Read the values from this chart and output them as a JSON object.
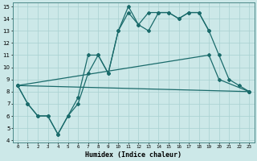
{
  "title": "",
  "xlabel": "Humidex (Indice chaleur)",
  "bg_color": "#cce8e8",
  "line_color": "#1a6b6b",
  "xlim": [
    -0.5,
    23.5
  ],
  "ylim": [
    3.8,
    15.3
  ],
  "yticks": [
    4,
    5,
    6,
    7,
    8,
    9,
    10,
    11,
    12,
    13,
    14,
    15
  ],
  "xticks": [
    0,
    1,
    2,
    3,
    4,
    5,
    6,
    7,
    8,
    9,
    10,
    11,
    12,
    13,
    14,
    15,
    16,
    17,
    18,
    19,
    20,
    21,
    22,
    23
  ],
  "line1": [
    8.5,
    7.0,
    6.0,
    6.0,
    4.5,
    6.0,
    7.5,
    11.0,
    11.0,
    9.5,
    13.0,
    15.0,
    13.5,
    14.5,
    14.5,
    14.5,
    14.0,
    14.5,
    14.5,
    13.0,
    null,
    null,
    null,
    null
  ],
  "line2": [
    8.5,
    7.0,
    6.0,
    6.0,
    4.5,
    6.0,
    7.0,
    9.5,
    11.0,
    9.5,
    13.0,
    14.5,
    13.5,
    13.0,
    14.5,
    14.5,
    14.0,
    14.5,
    14.5,
    13.0,
    11.0,
    9.0,
    8.5,
    8.0
  ],
  "line3_x": [
    0,
    19,
    20,
    23
  ],
  "line3_y": [
    8.5,
    11.0,
    9.0,
    8.0
  ],
  "line4_x": [
    0,
    23
  ],
  "line4_y": [
    8.5,
    8.0
  ]
}
